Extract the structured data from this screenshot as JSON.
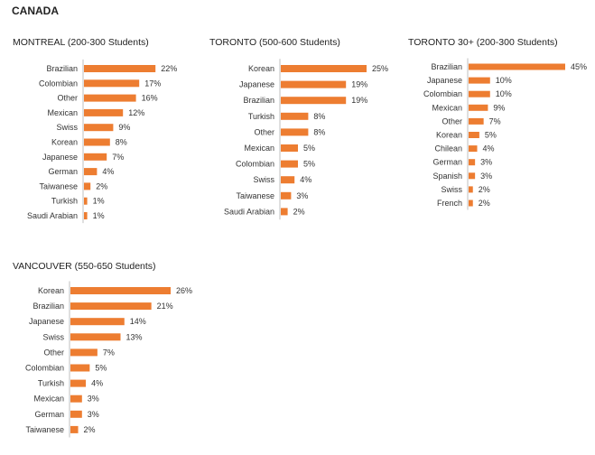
{
  "page": {
    "title": "CANADA"
  },
  "colors": {
    "bar": "#ED7D31",
    "axis": "#BFBFBF"
  },
  "chart_data": [
    {
      "type": "bar",
      "orientation": "horizontal",
      "title": "MONTREAL (200-300 Students)",
      "categories": [
        "Brazilian",
        "Colombian",
        "Other",
        "Mexican",
        "Swiss",
        "Korean",
        "Japanese",
        "German",
        "Taiwanese",
        "Turkish",
        "Saudi Arabian"
      ],
      "values": [
        22,
        17,
        16,
        12,
        9,
        8,
        7,
        4,
        2,
        1,
        1
      ],
      "labels": [
        "22%",
        "17%",
        "16%",
        "12%",
        "9%",
        "8%",
        "7%",
        "4%",
        "2%",
        "1%",
        "1%"
      ],
      "xlim": [
        0,
        25
      ]
    },
    {
      "type": "bar",
      "orientation": "horizontal",
      "title": "TORONTO (500-600 Students)",
      "categories": [
        "Korean",
        "Japanese",
        "Brazilian",
        "Turkish",
        "Other",
        "Mexican",
        "Colombian",
        "Swiss",
        "Taiwanese",
        "Saudi Arabian"
      ],
      "values": [
        25,
        19,
        19,
        8,
        8,
        5,
        5,
        4,
        3,
        2
      ],
      "labels": [
        "25%",
        "19%",
        "19%",
        "8%",
        "8%",
        "5%",
        "5%",
        "4%",
        "3%",
        "2%"
      ],
      "xlim": [
        0,
        25
      ]
    },
    {
      "type": "bar",
      "orientation": "horizontal",
      "title": "TORONTO 30+ (200-300 Students)",
      "categories": [
        "Brazilian",
        "Japanese",
        "Colombian",
        "Mexican",
        "Other",
        "Korean",
        "Chilean",
        "German",
        "Spanish",
        "Swiss",
        "French"
      ],
      "values": [
        45,
        10,
        10,
        9,
        7,
        5,
        4,
        3,
        3,
        2,
        2
      ],
      "labels": [
        "45%",
        "10%",
        "10%",
        "9%",
        "7%",
        "5%",
        "4%",
        "3%",
        "3%",
        "2%",
        "2%"
      ],
      "xlim": [
        0,
        45
      ]
    },
    {
      "type": "bar",
      "orientation": "horizontal",
      "title": "VANCOUVER (550-650 Students)",
      "categories": [
        "Korean",
        "Brazilian",
        "Japanese",
        "Swiss",
        "Other",
        "Colombian",
        "Turkish",
        "Mexican",
        "German",
        "Taiwanese"
      ],
      "values": [
        26,
        21,
        14,
        13,
        7,
        5,
        4,
        3,
        3,
        2
      ],
      "labels": [
        "26%",
        "21%",
        "14%",
        "13%",
        "7%",
        "5%",
        "4%",
        "3%",
        "3%",
        "2%"
      ],
      "xlim": [
        0,
        26
      ]
    }
  ]
}
